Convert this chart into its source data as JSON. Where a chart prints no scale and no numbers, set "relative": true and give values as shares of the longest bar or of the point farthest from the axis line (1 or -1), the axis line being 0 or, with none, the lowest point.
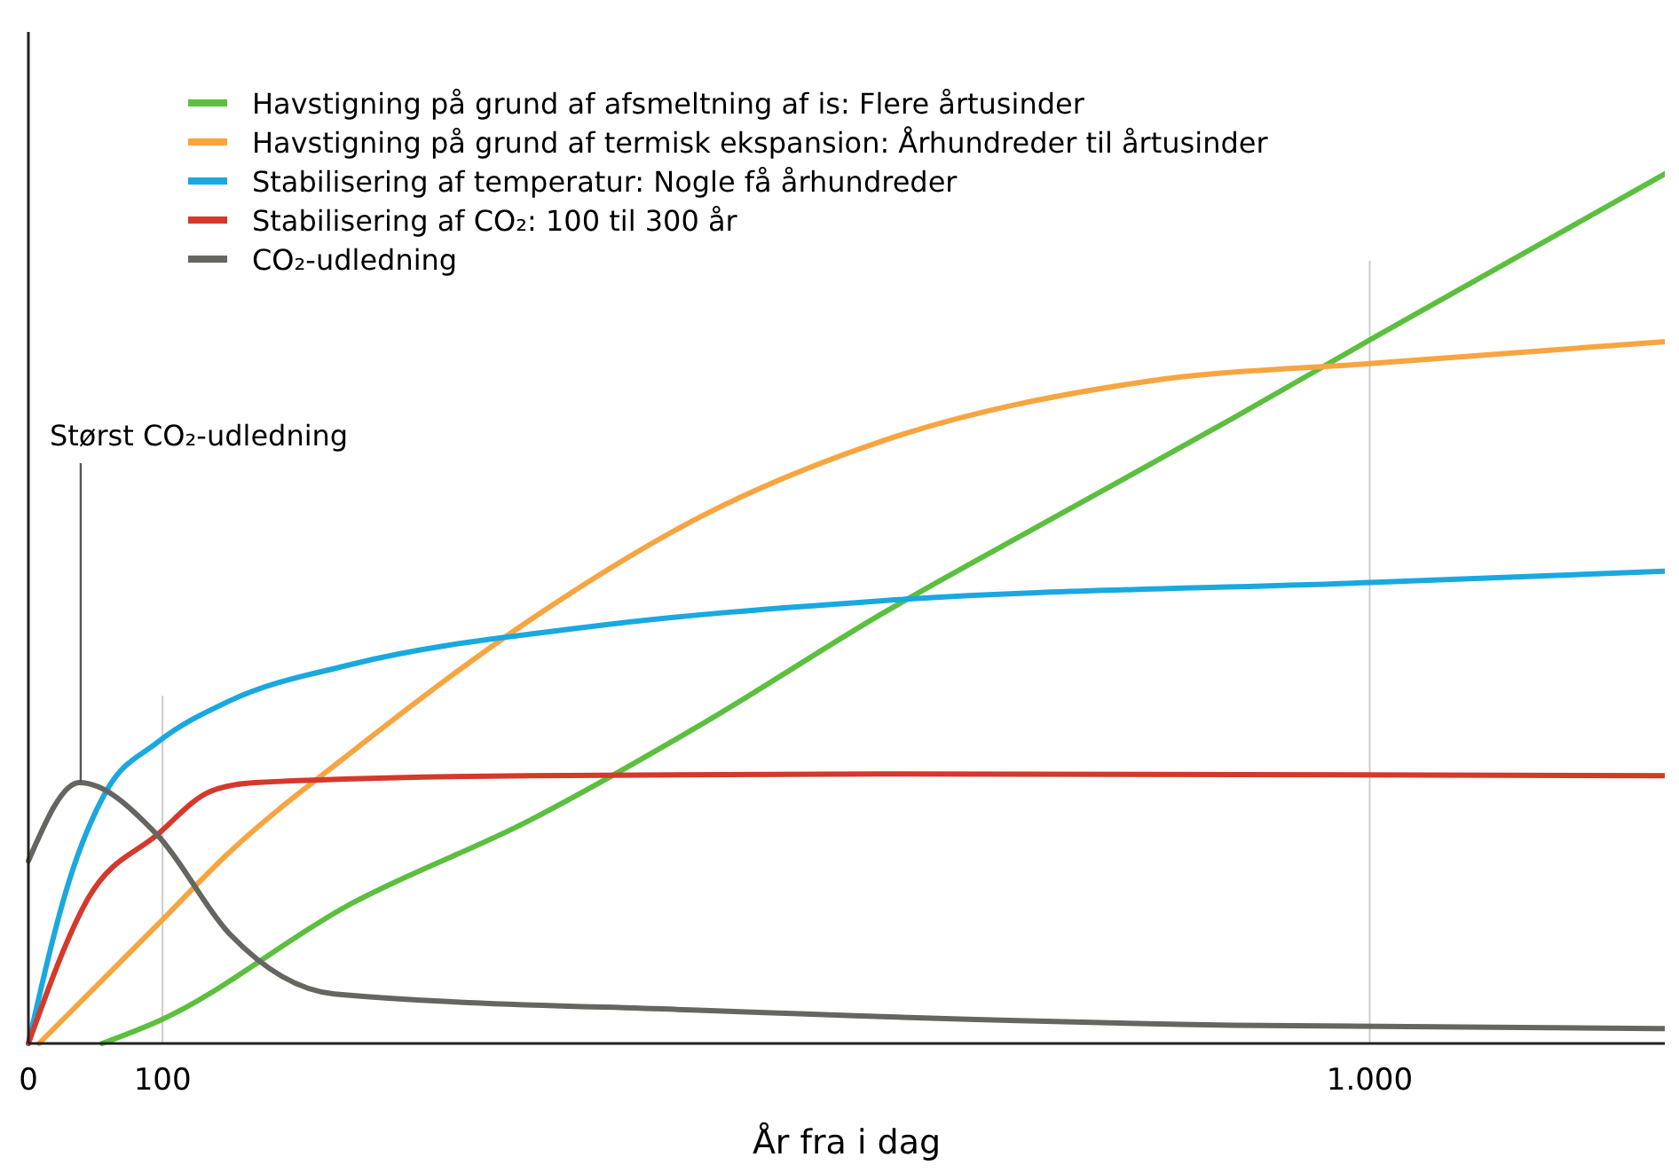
{
  "chart_data": {
    "type": "line",
    "relative": true,
    "xlabel": "År fra i dag",
    "xlim": [
      0,
      1220
    ],
    "xticks": [
      0,
      100,
      {
        "value": 1000,
        "label": "1.000"
      }
    ],
    "legend": "top left",
    "tick_labels": "x",
    "ref_lines": [
      {
        "axis": "x",
        "value": 100,
        "color": "#cccccc"
      },
      {
        "axis": "x",
        "value": 1000,
        "color": "#cccccc"
      }
    ],
    "annotations": [
      {
        "text": "Størst CO₂-udledning",
        "x": 39,
        "y": 0.3
      }
    ],
    "series": [
      {
        "name": "Havstigning på grund af afsmeltning af is: Flere årtusinder",
        "color": "#5cbf3f",
        "x": [
          55,
          96,
          241,
          373,
          504,
          635,
          766,
          898,
          1000,
          1220
        ],
        "values": [
          0,
          0.025,
          0.161,
          0.256,
          0.369,
          0.493,
          0.606,
          0.719,
          0.809,
          1
        ]
      },
      {
        "name": "Havstigning på grund af termisk ekspansion: Århundreder til årtusinder",
        "color": "#f7a541",
        "x": [
          8,
          96,
          150,
          241,
          373,
          504,
          635,
          832,
          1000,
          1220
        ],
        "values": [
          0,
          0.136,
          0.22,
          0.335,
          0.486,
          0.608,
          0.692,
          0.761,
          0.782,
          0.807
        ]
      },
      {
        "name": "Stabilisering af temperatur: Nogle få århundreder",
        "color": "#1aa8e0",
        "x": [
          0,
          31,
          58,
          96,
          150,
          241,
          412,
          635,
          1000,
          1220
        ],
        "values": [
          0,
          0.19,
          0.29,
          0.346,
          0.394,
          0.436,
          0.478,
          0.509,
          0.53,
          0.543
        ]
      },
      {
        "name": "Stabilisering af CO₂: 100 til 300 år",
        "color": "#d4392b",
        "x": [
          0,
          45,
          96,
          136,
          169,
          373,
          635,
          1220
        ],
        "values": [
          0,
          0.168,
          0.24,
          0.29,
          0.3,
          0.308,
          0.31,
          0.308
        ]
      },
      {
        "name": "CO₂-udledning",
        "color": "#666660",
        "x": [
          0,
          38,
          96,
          150,
          228,
          504,
          898,
          1220
        ],
        "values": [
          0.21,
          0.3,
          0.24,
          0.126,
          0.057,
          0.038,
          0.021,
          0.017
        ]
      }
    ]
  }
}
